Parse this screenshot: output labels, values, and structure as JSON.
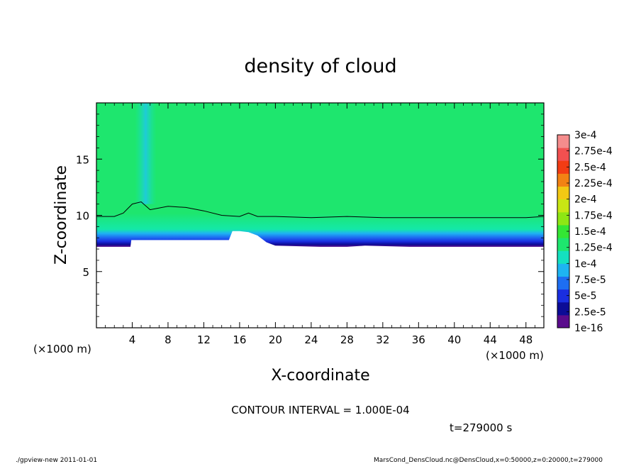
{
  "chart_data": {
    "type": "heatmap",
    "title": "density of cloud",
    "xlabel": "X-coordinate",
    "ylabel": "Z-coordinate",
    "x_unit_label": "(×1000 m)",
    "y_unit_label": "(×1000 m)",
    "xlim": [
      0,
      50
    ],
    "ylim": [
      0,
      20
    ],
    "x_ticks": [
      4,
      8,
      12,
      16,
      20,
      24,
      28,
      32,
      36,
      40,
      44,
      48
    ],
    "y_ticks": [
      5,
      10,
      15
    ],
    "contour_interval_text": "CONTOUR INTERVAL = 1.000E-04",
    "time_text": "t=279000 s",
    "colorbar": {
      "labels": [
        "1e-16",
        "2.5e-5",
        "5e-5",
        "7.5e-5",
        "1e-4",
        "1.25e-4",
        "1.5e-4",
        "1.75e-4",
        "2e-4",
        "2.25e-4",
        "2.5e-4",
        "2.75e-4",
        "3e-4"
      ],
      "colors": [
        "#5a0c8c",
        "#0c0c96",
        "#1a2ee0",
        "#1e6ef2",
        "#1eb4f2",
        "#14e0c0",
        "#1ee66e",
        "#34e634",
        "#8ee614",
        "#c8e614",
        "#f2c814",
        "#f28214",
        "#f23c14",
        "#f25050",
        "#f58c8c"
      ]
    },
    "field_summary": {
      "cloud_base_z": 7.2,
      "cloud_contour_z": 9.8,
      "main_value": 0.00013,
      "plume_x": 5.5
    },
    "cloud_base_profile": {
      "x": [
        0,
        3.8,
        3.9,
        5,
        8,
        12,
        14.8,
        15.2,
        16,
        17,
        18,
        19,
        20,
        25,
        28,
        30,
        35,
        40,
        45,
        50
      ],
      "z": [
        7.2,
        7.2,
        7.8,
        7.8,
        7.8,
        7.8,
        7.8,
        8.6,
        8.6,
        8.5,
        8.2,
        7.6,
        7.3,
        7.2,
        7.2,
        7.3,
        7.2,
        7.2,
        7.2,
        7.2
      ]
    },
    "contour_1e4": {
      "x": [
        0,
        2,
        3,
        4,
        5,
        6,
        8,
        10,
        12,
        14,
        16,
        17,
        18,
        20,
        24,
        28,
        32,
        36,
        40,
        44,
        48,
        50
      ],
      "z": [
        9.9,
        9.9,
        10.2,
        11.0,
        11.2,
        10.5,
        10.8,
        10.7,
        10.4,
        10.0,
        9.9,
        10.2,
        9.9,
        9.9,
        9.8,
        9.9,
        9.8,
        9.8,
        9.8,
        9.8,
        9.8,
        9.9
      ]
    }
  },
  "footer": {
    "left": "./gpview-new   2011-01-01",
    "right": "MarsCond_DensCloud.nc@DensCloud,x=0:50000,z=0:20000,t=279000"
  }
}
